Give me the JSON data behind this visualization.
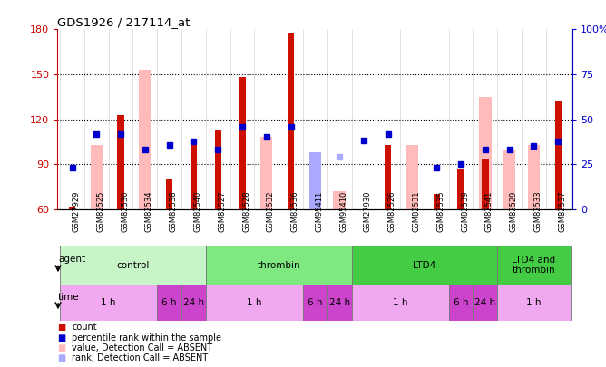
{
  "title": "GDS1926 / 217114_at",
  "samples": [
    "GSM27929",
    "GSM82525",
    "GSM82530",
    "GSM82534",
    "GSM82538",
    "GSM82540",
    "GSM82527",
    "GSM82528",
    "GSM82532",
    "GSM82536",
    "GSM95411",
    "GSM95410",
    "GSM27930",
    "GSM82526",
    "GSM82531",
    "GSM82535",
    "GSM82539",
    "GSM82541",
    "GSM82529",
    "GSM82533",
    "GSM82537"
  ],
  "count_values": [
    62,
    null,
    123,
    null,
    80,
    103,
    113,
    148,
    null,
    178,
    null,
    null,
    null,
    103,
    null,
    70,
    87,
    93,
    null,
    null,
    132
  ],
  "absent_value_bars": [
    null,
    103,
    null,
    153,
    null,
    null,
    null,
    null,
    108,
    null,
    97,
    72,
    null,
    null,
    103,
    null,
    null,
    135,
    100,
    103,
    null
  ],
  "absent_rank_bars": [
    null,
    null,
    null,
    null,
    null,
    null,
    null,
    null,
    null,
    null,
    98,
    null,
    null,
    null,
    null,
    null,
    null,
    null,
    null,
    null,
    null
  ],
  "blue_squares_present_y": [
    88,
    110,
    110,
    100,
    103,
    105,
    100,
    115,
    108,
    115,
    null,
    null,
    106,
    110,
    null,
    88,
    90,
    100,
    100,
    102,
    105
  ],
  "blue_squares_absent_y": [
    null,
    null,
    null,
    null,
    null,
    null,
    null,
    null,
    null,
    null,
    null,
    95,
    null,
    null,
    null,
    null,
    null,
    null,
    null,
    null,
    null
  ],
  "ylim_left": [
    60,
    180
  ],
  "ylim_right": [
    0,
    100
  ],
  "yticks_left": [
    60,
    90,
    120,
    150,
    180
  ],
  "yticks_right": [
    0,
    25,
    50,
    75,
    100
  ],
  "ytick_labels_right": [
    "0",
    "25",
    "50",
    "75",
    "100%"
  ],
  "agent_groups": [
    {
      "label": "control",
      "start": 0,
      "end": 6,
      "color": "#c8f5c8"
    },
    {
      "label": "thrombin",
      "start": 6,
      "end": 12,
      "color": "#80e880"
    },
    {
      "label": "LTD4",
      "start": 12,
      "end": 18,
      "color": "#44cc44"
    },
    {
      "label": "LTD4 and\nthrombin",
      "start": 18,
      "end": 21,
      "color": "#44cc44"
    }
  ],
  "time_groups": [
    {
      "label": "1 h",
      "start": 0,
      "end": 4,
      "color": "#f0a8f0"
    },
    {
      "label": "6 h",
      "start": 4,
      "end": 5,
      "color": "#cc44cc"
    },
    {
      "label": "24 h",
      "start": 5,
      "end": 6,
      "color": "#cc44cc"
    },
    {
      "label": "1 h",
      "start": 6,
      "end": 10,
      "color": "#f0a8f0"
    },
    {
      "label": "6 h",
      "start": 10,
      "end": 11,
      "color": "#cc44cc"
    },
    {
      "label": "24 h",
      "start": 11,
      "end": 12,
      "color": "#cc44cc"
    },
    {
      "label": "1 h",
      "start": 12,
      "end": 16,
      "color": "#f0a8f0"
    },
    {
      "label": "6 h",
      "start": 16,
      "end": 17,
      "color": "#cc44cc"
    },
    {
      "label": "24 h",
      "start": 17,
      "end": 18,
      "color": "#cc44cc"
    },
    {
      "label": "1 h",
      "start": 18,
      "end": 21,
      "color": "#f0a8f0"
    }
  ],
  "bar_width": 0.5,
  "absent_bar_width": 0.5,
  "count_color": "#cc1100",
  "absent_value_color": "#ffbbbb",
  "absent_rank_color": "#aaaaff",
  "blue_square_color": "#0000cc",
  "grid_dotted_color": "#000000",
  "bg_color": "#ffffff",
  "label_color_left": "#cc0000",
  "label_color_right": "#0000cc",
  "xtick_bg": "#dddddd"
}
